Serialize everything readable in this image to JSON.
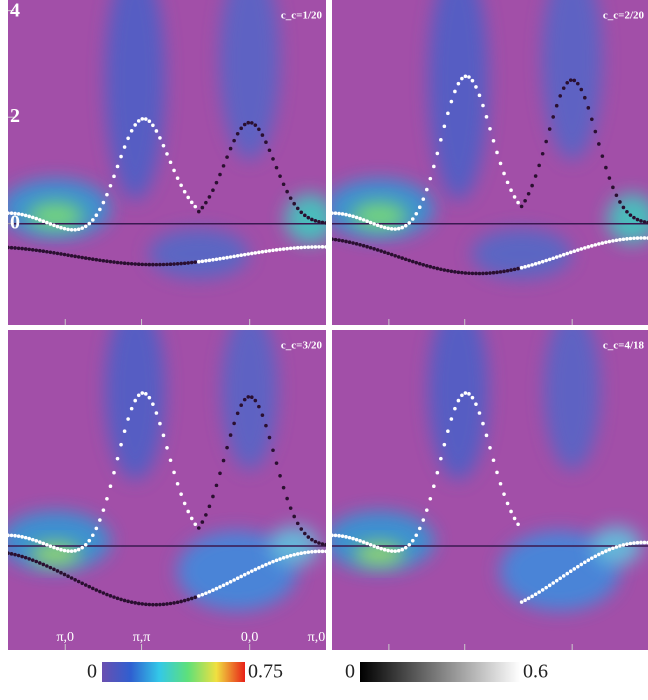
{
  "chart_data": [
    {
      "type": "heatmap",
      "title": "c_c=1/20",
      "ylim": [
        -1.9,
        4.2
      ],
      "yticks": [
        0,
        2,
        4
      ],
      "background": "#a24fa8"
    },
    {
      "type": "heatmap",
      "title": "c_c=2/20",
      "ylim": [
        -1.9,
        4.2
      ],
      "background": "#a24fa8"
    },
    {
      "type": "heatmap",
      "title": "c_c=3/20",
      "ylim": [
        -1.95,
        4.05
      ],
      "categories": [
        "π,0",
        "π,π",
        "0,0",
        "π,0"
      ],
      "background": "#a24fa8"
    },
    {
      "type": "heatmap",
      "title": "c_c=4/18",
      "ylim": [
        -1.95,
        4.05
      ],
      "background": "#a24fa8"
    }
  ],
  "colorbars": [
    {
      "lim": [
        0,
        0.75
      ],
      "ticks": [
        0,
        0.75
      ],
      "colors": [
        "#6a4fb0",
        "#2f5fd0",
        "#33c8e8",
        "#5ee07a",
        "#f0e040",
        "#e82018"
      ]
    },
    {
      "lim": [
        0,
        0.6
      ],
      "ticks": [
        0,
        0.6
      ],
      "colors": [
        "#000000",
        "#ffffff"
      ]
    }
  ]
}
